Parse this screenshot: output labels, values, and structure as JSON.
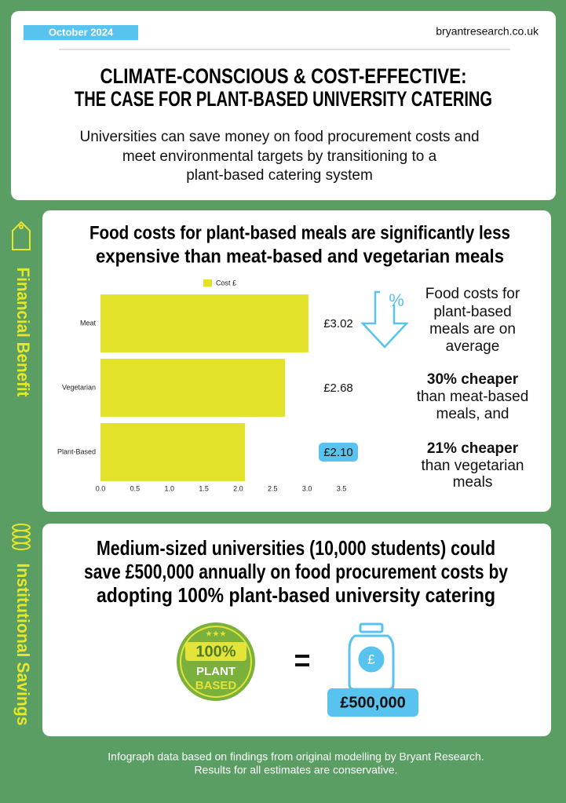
{
  "header": {
    "date": "October 2024",
    "site": "bryantresearch.co.uk",
    "title": [
      "CLIMATE-CONSCIOUS & COST-EFFECTIVE:",
      "THE CASE FOR PLANT-BASED UNIVERSITY CATERING"
    ],
    "subtitle": [
      "Universities can save money on food procurement costs and",
      "meet environmental targets by transitioning to a",
      "plant-based catering system"
    ]
  },
  "side_labels": [
    "Financial Benefit",
    "Institutional Savings"
  ],
  "section1": {
    "heading": [
      "Food costs for plant-based meals are significantly less",
      "expensive than meat-based and vegetarian meals"
    ],
    "icon_symbol": "%",
    "callout": {
      "intro": [
        "Food costs for",
        "plant-based",
        "meals are on",
        "average"
      ],
      "point1": [
        "30% cheaper",
        "than meat-based",
        "meals, and"
      ],
      "point2": [
        "21% cheaper",
        "than vegetarian",
        "meals"
      ]
    }
  },
  "chart_data": {
    "type": "bar",
    "orientation": "horizontal",
    "categories": [
      "Meat",
      "Vegetarian",
      "Plant-Based"
    ],
    "series": [
      {
        "name": "Cost £",
        "color": "#e3e22b",
        "values": [
          3.02,
          2.68,
          2.1
        ],
        "value_labels": [
          "£3.02",
          "£2.68",
          "£2.10"
        ]
      }
    ],
    "xlim": [
      0,
      3.5
    ],
    "xticks": [
      {
        "value": 0,
        "label": "0.0"
      },
      0.5,
      {
        "value": 1,
        "label": "1.0"
      },
      1.5,
      {
        "value": 2,
        "label": "2.0"
      },
      2.5,
      {
        "value": 3,
        "label": "3.0"
      },
      3.5
    ],
    "highlight_index": 2,
    "grid": false
  },
  "section2": {
    "heading": [
      "Medium-sized universities (10,000 students) could",
      "save £500,000 annually on food procurement costs by",
      "adopting 100% plant-based university catering"
    ],
    "badge": [
      "100%",
      "PLANT",
      "BASED"
    ],
    "jar_symbol": "£",
    "amount": "£500,000"
  },
  "footer": [
    "Infograph data based on findings from original modelling by Bryant Research.",
    "Results for all estimates are conservative."
  ]
}
